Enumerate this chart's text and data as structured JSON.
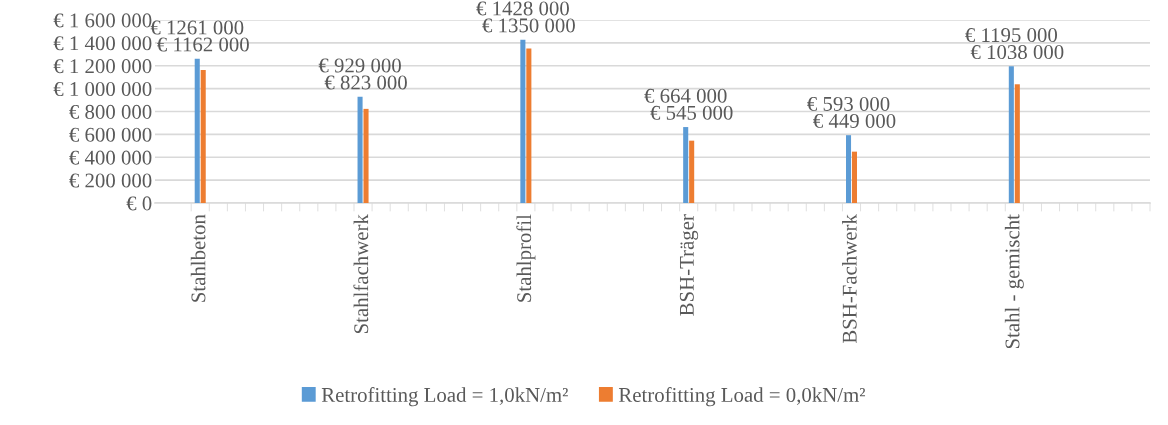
{
  "chart_data": {
    "type": "bar",
    "categories": [
      "Stahlbeton",
      null,
      null,
      null,
      null,
      null,
      null,
      null,
      null,
      "Stahlfachwerk",
      null,
      null,
      null,
      null,
      null,
      null,
      null,
      null,
      "Stahlprofil",
      null,
      null,
      null,
      null,
      null,
      null,
      null,
      null,
      "BSH-Träger",
      null,
      null,
      null,
      null,
      null,
      null,
      null,
      null,
      "BSH-Fachwerk",
      null,
      null,
      null,
      null,
      null,
      null,
      null,
      null,
      "Stahl - gemischt",
      null,
      null,
      null,
      null,
      null,
      null,
      null
    ],
    "series": [
      {
        "name": "Retrofitting Load = 1,0kN/m²",
        "color": "#5b9bd5",
        "values": [
          1261000,
          null,
          null,
          null,
          null,
          null,
          null,
          null,
          null,
          929000,
          null,
          null,
          null,
          null,
          null,
          null,
          null,
          null,
          1428000,
          null,
          null,
          null,
          null,
          null,
          null,
          null,
          null,
          664000,
          null,
          null,
          null,
          null,
          null,
          null,
          null,
          null,
          593000,
          null,
          null,
          null,
          null,
          null,
          null,
          null,
          null,
          1195000,
          null,
          null,
          null,
          null,
          null,
          null,
          null
        ],
        "value_labels": [
          "€ 1261 000",
          null,
          null,
          null,
          null,
          null,
          null,
          null,
          null,
          "€ 929 000",
          null,
          null,
          null,
          null,
          null,
          null,
          null,
          null,
          "€ 1428 000",
          null,
          null,
          null,
          null,
          null,
          null,
          null,
          null,
          "€ 664 000",
          null,
          null,
          null,
          null,
          null,
          null,
          null,
          null,
          "€ 593 000",
          null,
          null,
          null,
          null,
          null,
          null,
          null,
          null,
          "€ 1195 000",
          null,
          null,
          null,
          null,
          null,
          null,
          null
        ]
      },
      {
        "name": "Retrofitting Load = 0,0kN/m²",
        "color": "#ed7d31",
        "values": [
          1162000,
          null,
          null,
          null,
          null,
          null,
          null,
          null,
          null,
          823000,
          null,
          null,
          null,
          null,
          null,
          null,
          null,
          null,
          1350000,
          null,
          null,
          null,
          null,
          null,
          null,
          null,
          null,
          545000,
          null,
          null,
          null,
          null,
          null,
          null,
          null,
          null,
          449000,
          null,
          null,
          null,
          null,
          null,
          null,
          null,
          null,
          1038000,
          null,
          null,
          null,
          null,
          null,
          null,
          null
        ],
        "value_labels": [
          "€ 1162 000",
          null,
          null,
          null,
          null,
          null,
          null,
          null,
          null,
          "€ 823 000",
          null,
          null,
          null,
          null,
          null,
          null,
          null,
          null,
          "€ 1350 000",
          null,
          null,
          null,
          null,
          null,
          null,
          null,
          null,
          "€ 545 000",
          null,
          null,
          null,
          null,
          null,
          null,
          null,
          null,
          "€ 449 000",
          null,
          null,
          null,
          null,
          null,
          null,
          null,
          null,
          "€ 1038 000",
          null,
          null,
          null,
          null,
          null,
          null,
          null
        ]
      }
    ],
    "ylim": [
      0,
      1600000
    ],
    "yticks": [
      {
        "value": 0,
        "label": "€ 0"
      },
      {
        "value": 200000,
        "label": "€ 200 000"
      },
      {
        "value": 400000,
        "label": "€ 400 000"
      },
      {
        "value": 600000,
        "label": "€ 600 000"
      },
      {
        "value": 800000,
        "label": "€ 800 000"
      },
      {
        "value": 1000000,
        "label": "€ 1 000 000"
      },
      {
        "value": 1200000,
        "label": "€ 1 200 000"
      },
      {
        "value": 1400000,
        "label": "€ 1 400 000"
      },
      {
        "value": 1600000,
        "label": "€ 1 600 000"
      }
    ],
    "grid": "y",
    "legend": "bottom"
  }
}
